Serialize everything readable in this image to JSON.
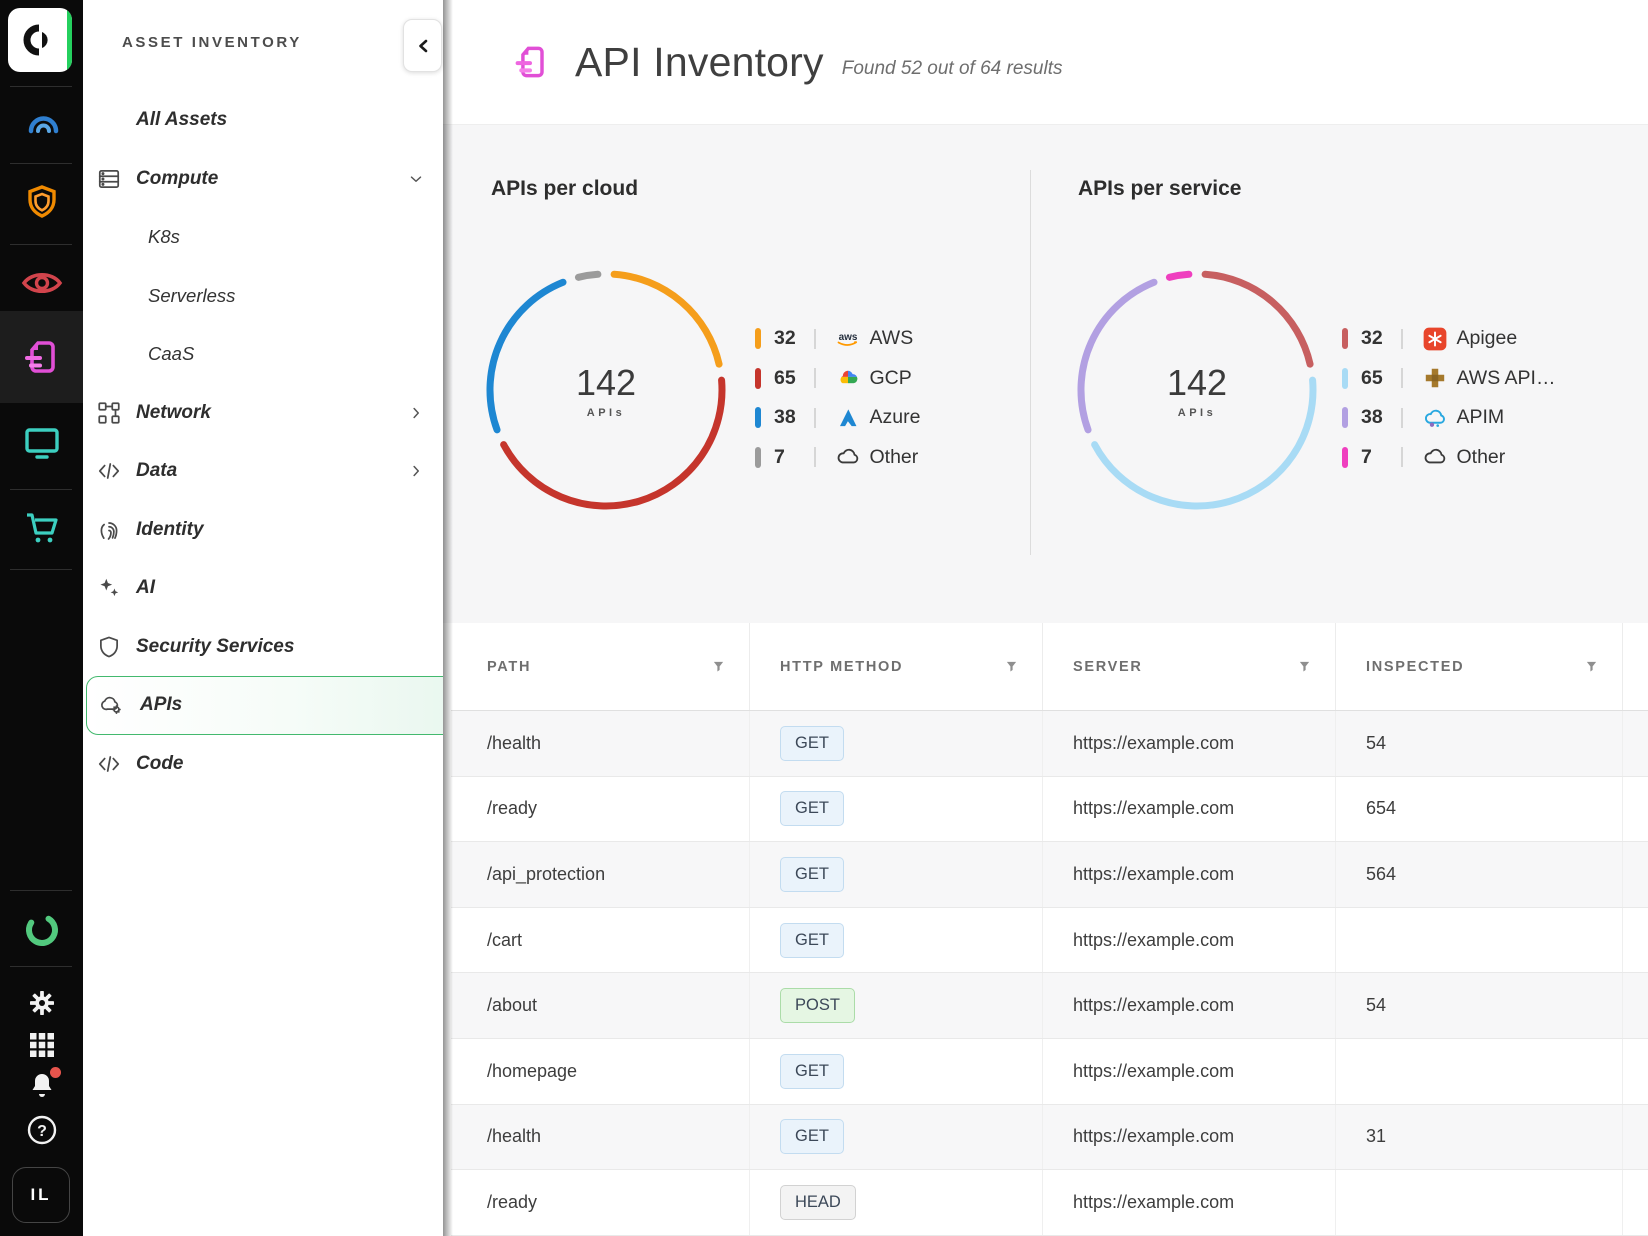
{
  "accent_color": "#43b96e",
  "rail": {
    "icons": [
      "orca-logo",
      "gauge",
      "shield",
      "eye",
      "api-doc",
      "monitor",
      "cart",
      "ring-logo",
      "settings-gear",
      "app-grid",
      "notifications-bell",
      "help"
    ],
    "avatar_label": "IL"
  },
  "sidebar": {
    "title": "ASSET INVENTORY",
    "items": [
      {
        "label": "All Assets",
        "level": 1
      },
      {
        "label": "Compute",
        "level": 1,
        "icon": "compute",
        "chevron": "down"
      },
      {
        "label": "K8s",
        "level": 2
      },
      {
        "label": "Serverless",
        "level": 2
      },
      {
        "label": "CaaS",
        "level": 2
      },
      {
        "label": "Network",
        "level": 1,
        "icon": "network",
        "chevron": "right"
      },
      {
        "label": "Data",
        "level": 1,
        "icon": "data",
        "chevron": "right"
      },
      {
        "label": "Identity",
        "level": 1,
        "icon": "identity"
      },
      {
        "label": "AI",
        "level": 1,
        "icon": "ai"
      },
      {
        "label": "Security Services",
        "level": 1,
        "icon": "security"
      },
      {
        "label": "APIs",
        "level": 1,
        "icon": "apis",
        "selected": true
      },
      {
        "label": "Code",
        "level": 1,
        "icon": "code"
      }
    ]
  },
  "header": {
    "title": "API Inventory",
    "subtitle": "Found 52 out of 64 results"
  },
  "chart_data": [
    {
      "type": "donut",
      "title": "APIs per cloud",
      "center_value": "142",
      "center_label": "APIs",
      "total": 142,
      "segments": [
        {
          "label": "AWS",
          "value": 32,
          "color": "#F59E1B",
          "icon": "aws"
        },
        {
          "label": "GCP",
          "value": 65,
          "color": "#C5352C",
          "icon": "gcp"
        },
        {
          "label": "Azure",
          "value": 38,
          "color": "#1E87D2",
          "icon": "azure"
        },
        {
          "label": "Other",
          "value": 7,
          "color": "#9B9B9B",
          "icon": "cloud"
        }
      ],
      "legend_position": "right"
    },
    {
      "type": "donut",
      "title": "APIs per service",
      "center_value": "142",
      "center_label": "APIs",
      "total": 142,
      "segments": [
        {
          "label": "Apigee",
          "value": 32,
          "color": "#C75F60",
          "icon": "apigee"
        },
        {
          "label": "AWS API…",
          "value": 65,
          "color": "#A8DBF5",
          "icon": "awsapi"
        },
        {
          "label": "APIM",
          "value": 38,
          "color": "#B2A0E2",
          "icon": "apim"
        },
        {
          "label": "Other",
          "value": 7,
          "color": "#EF3FBF",
          "icon": "cloud"
        }
      ],
      "legend_position": "right"
    }
  ],
  "table": {
    "columns": [
      {
        "label": "PATH"
      },
      {
        "label": "HTTP METHOD"
      },
      {
        "label": "SERVER"
      },
      {
        "label": "INSPECTED"
      }
    ],
    "rows": [
      {
        "path": "/health",
        "method": "GET",
        "server": "https://example.com",
        "inspected": "54"
      },
      {
        "path": "/ready",
        "method": "GET",
        "server": "https://example.com",
        "inspected": "654"
      },
      {
        "path": "/api_protection",
        "method": "GET",
        "server": "https://example.com",
        "inspected": "564"
      },
      {
        "path": "/cart",
        "method": "GET",
        "server": "https://example.com",
        "inspected": ""
      },
      {
        "path": "/about",
        "method": "POST",
        "server": "https://example.com",
        "inspected": "54"
      },
      {
        "path": "/homepage",
        "method": "GET",
        "server": "https://example.com",
        "inspected": ""
      },
      {
        "path": "/health",
        "method": "GET",
        "server": "https://example.com",
        "inspected": "31"
      },
      {
        "path": "/ready",
        "method": "HEAD",
        "server": "https://example.com",
        "inspected": ""
      }
    ],
    "badge_colors": {
      "GET": "#eaf3fb",
      "POST": "#e5f6e3",
      "HEAD": "#f3f3f3"
    }
  }
}
